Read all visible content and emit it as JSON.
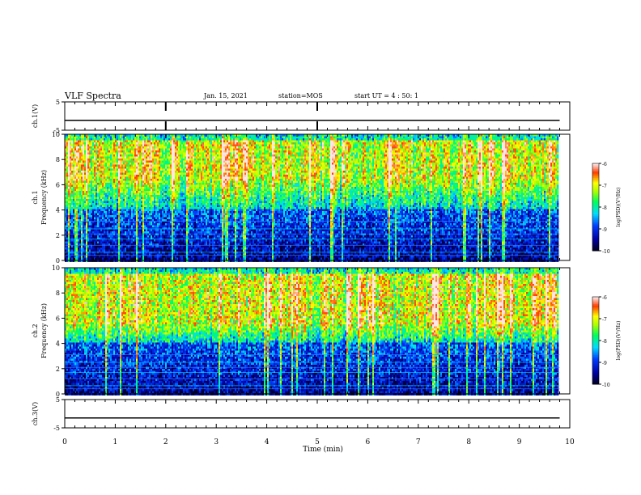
{
  "header": {
    "title": "VLF Spectra",
    "date": "Jan. 15, 2021",
    "station": "station=MOS",
    "start_ut": "start UT =  4 : 50: 1"
  },
  "chart_data": [
    {
      "type": "line",
      "name": "ch1-voltage",
      "ylabel": "ch.1(V)",
      "ylim": [
        -5,
        5
      ],
      "yticks": [
        5,
        -5
      ],
      "x": [
        0,
        10
      ],
      "y": [
        -1.5,
        -1.5
      ],
      "color": "#000000"
    },
    {
      "type": "heatmap",
      "name": "ch1-spectrogram",
      "ylabel": "ch.1",
      "ylabel2": "Frequency (kHz)",
      "ylim": [
        0,
        10
      ],
      "yticks": [
        0,
        2,
        4,
        6,
        8,
        10
      ],
      "xlim": [
        0,
        9.8
      ],
      "band_peak_khz": [
        6.5,
        9.5
      ],
      "colorbar": {
        "label": "log(PSD)(V²/Hz)",
        "ticks": [
          "-6",
          "-7",
          "-8",
          "-9",
          "-10"
        ],
        "range": [
          -10,
          -6
        ],
        "colors": [
          "#000080",
          "#0000ff",
          "#00ffff",
          "#00ff00",
          "#ffff00",
          "#ff0000",
          "#ffffff"
        ]
      }
    },
    {
      "type": "heatmap",
      "name": "ch2-spectrogram",
      "ylabel": "ch.2",
      "ylabel2": "Frequency (kHz)",
      "ylim": [
        0,
        10
      ],
      "yticks": [
        0,
        2,
        4,
        6,
        8,
        10
      ],
      "xlim": [
        0,
        9.8
      ],
      "band_peak_khz": [
        5.5,
        9.5
      ],
      "colorbar": {
        "label": "log(PSD)(V²/Hz)",
        "ticks": [
          "-6",
          "-7",
          "-8",
          "-9",
          "-10"
        ],
        "range": [
          -10,
          -6
        ],
        "colors": [
          "#000080",
          "#0000ff",
          "#00ffff",
          "#00ff00",
          "#ffff00",
          "#ff0000",
          "#ffffff"
        ]
      }
    },
    {
      "type": "line",
      "name": "ch3-voltage",
      "ylabel": "ch.3(V)",
      "ylim": [
        -5,
        5
      ],
      "yticks": [
        5,
        -5
      ],
      "x": [
        0,
        10
      ],
      "y": [
        -1.5,
        -1.5
      ],
      "color": "#000000"
    }
  ],
  "xaxis": {
    "label": "Time (min)",
    "ticks": [
      "0",
      "1",
      "2",
      "3",
      "4",
      "5",
      "6",
      "7",
      "8",
      "9",
      "10"
    ],
    "range": [
      0,
      10
    ]
  }
}
